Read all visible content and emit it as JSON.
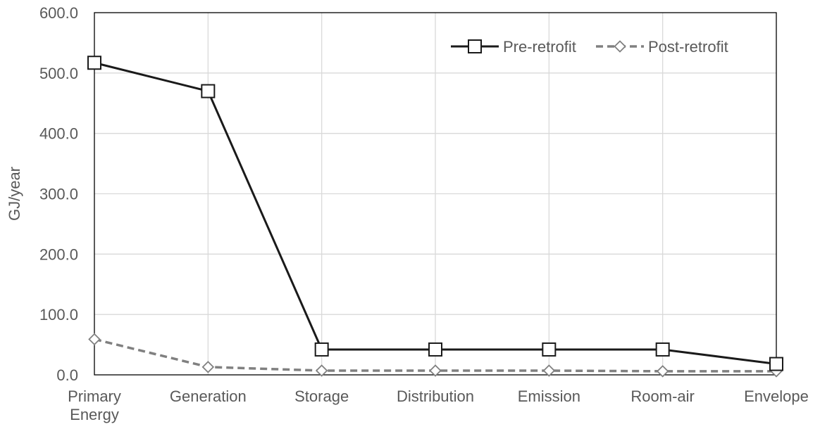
{
  "chart_data": {
    "type": "line",
    "title": "",
    "xlabel": "",
    "ylabel": "GJ/year",
    "ylim": [
      0,
      600
    ],
    "yticks": [
      0,
      100,
      200,
      300,
      400,
      500,
      600
    ],
    "ytick_labels": [
      "0.0",
      "100.0",
      "200.0",
      "300.0",
      "400.0",
      "500.0",
      "600.0"
    ],
    "categories": [
      "Primary Energy",
      "Generation",
      "Storage",
      "Distribution",
      "Emission",
      "Room-air",
      "Envelope"
    ],
    "grid": true,
    "legend_position": "top-right",
    "series": [
      {
        "name": "Pre-retrofit",
        "values": [
          517,
          470,
          42,
          42,
          42,
          42,
          18
        ],
        "color": "#1a1a1a",
        "line_style": "solid",
        "marker": "square"
      },
      {
        "name": "Post-retrofit",
        "values": [
          59,
          13,
          7,
          7,
          7,
          6,
          6
        ],
        "color": "#808080",
        "line_style": "dashed",
        "marker": "diamond"
      }
    ]
  }
}
